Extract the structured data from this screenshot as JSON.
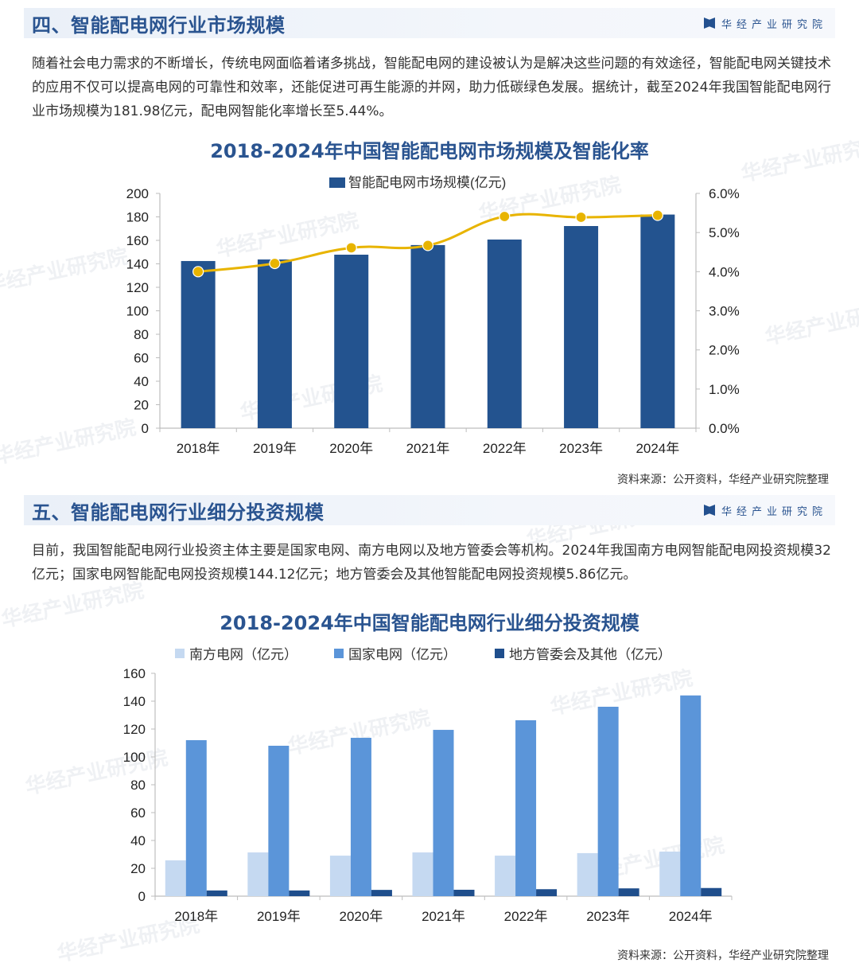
{
  "section4": {
    "title": "四、智能配电网行业市场规模",
    "brand": "华经产业研究院",
    "paragraph": "随着社会电力需求的不断增长，传统电网面临着诸多挑战，智能配电网的建设被认为是解决这些问题的有效途径，智能配电网关键技术的应用不仅可以提高电网的可靠性和效率，还能促进可再生能源的并网，助力低碳绿色发展。据统计，截至2024年我国智能配电网行业市场规模为181.98亿元，配电网智能化率增长至5.44%。",
    "source": "资料来源：公开资料，华经产业研究院整理"
  },
  "section5": {
    "title": "五、智能配电网行业细分投资规模",
    "brand": "华经产业研究院",
    "paragraph": "目前，我国智能配电网行业投资主体主要是国家电网、南方电网以及地方管委会等机构。2024年我国南方电网智能配电网投资规模32亿元；国家电网智能配电网投资规模144.12亿元；地方管委会及其他智能配电网投资规模5.86亿元。",
    "source": "资料来源：公开资料，华经产业研究院整理"
  },
  "watermark_text": "华经产业研究院",
  "colors": {
    "title_blue": "#2a5490",
    "bar_dark": "#23538f",
    "line_gold": "#e8b400",
    "bar_light": "#c5d9f1",
    "bar_mid": "#5b95d9",
    "bar_navy": "#1f4e8c"
  },
  "chart_data": [
    {
      "type": "bar+line",
      "title": "2018-2024年中国智能配电网市场规模及智能化率",
      "categories": [
        "2018年",
        "2019年",
        "2020年",
        "2021年",
        "2022年",
        "2023年",
        "2024年"
      ],
      "series": [
        {
          "name": "智能配电网市场规模(亿元)",
          "type": "bar",
          "axis": "left",
          "values": [
            142.4,
            143.7,
            147.8,
            156.0,
            160.7,
            172.2,
            181.98
          ]
        },
        {
          "name": "配电网智能化率",
          "type": "line",
          "axis": "right",
          "values": [
            4.0,
            4.21,
            4.61,
            4.67,
            5.41,
            5.39,
            5.44
          ]
        }
      ],
      "legend": [
        "智能配电网市场规模(亿元)"
      ],
      "legend_position": "top",
      "ylim": [
        0,
        200
      ],
      "yticks": [
        "0",
        "20",
        "40",
        "60",
        "80",
        "100",
        "120",
        "140",
        "160",
        "180",
        "200"
      ],
      "y2lim": [
        0,
        6
      ],
      "y2ticks": [
        "0.0%",
        "1.0%",
        "2.0%",
        "3.0%",
        "4.0%",
        "5.0%",
        "6.0%"
      ],
      "xlabel": "",
      "ylabel": "",
      "grid": false
    },
    {
      "type": "bar",
      "title": "2018-2024年中国智能配电网行业细分投资规模",
      "categories": [
        "2018年",
        "2019年",
        "2020年",
        "2021年",
        "2022年",
        "2023年",
        "2024年"
      ],
      "series": [
        {
          "name": "南方电网（亿元）",
          "values": [
            25.7,
            31.4,
            29.1,
            31.4,
            29.1,
            30.9,
            32.0
          ]
        },
        {
          "name": "国家电网（亿元）",
          "values": [
            112.0,
            108.0,
            113.7,
            119.4,
            126.3,
            136.0,
            144.12
          ]
        },
        {
          "name": "地方管委会及其他（亿元）",
          "values": [
            4.1,
            4.1,
            4.5,
            4.6,
            5.0,
            5.6,
            5.86
          ]
        }
      ],
      "legend": [
        "南方电网（亿元）",
        "国家电网（亿元）",
        "地方管委会及其他（亿元）"
      ],
      "legend_position": "top",
      "ylim": [
        0,
        160
      ],
      "yticks": [
        "0",
        "20",
        "40",
        "60",
        "80",
        "100",
        "120",
        "140",
        "160"
      ],
      "xlabel": "",
      "ylabel": "",
      "grid": false
    }
  ]
}
